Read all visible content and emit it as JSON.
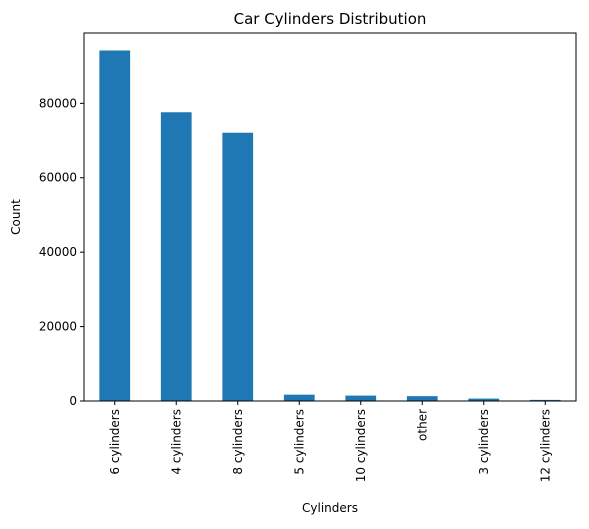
{
  "chart_data": {
    "type": "bar",
    "title": "Car Cylinders Distribution",
    "xlabel": "Cylinders",
    "ylabel": "Count",
    "categories": [
      "6 cylinders",
      "4 cylinders",
      "8 cylinders",
      "5 cylinders",
      "10 cylinders",
      "other",
      "3 cylinders",
      "12 cylinders"
    ],
    "values": [
      94200,
      77600,
      72100,
      1700,
      1450,
      1300,
      650,
      300
    ],
    "ylim": [
      0,
      98900
    ],
    "yticks": [
      0,
      20000,
      40000,
      60000,
      80000
    ],
    "ytick_labels": [
      "0",
      "20000",
      "40000",
      "60000",
      "80000"
    ],
    "grid": false,
    "legend": "none",
    "bar_color": "#1f77b4"
  }
}
